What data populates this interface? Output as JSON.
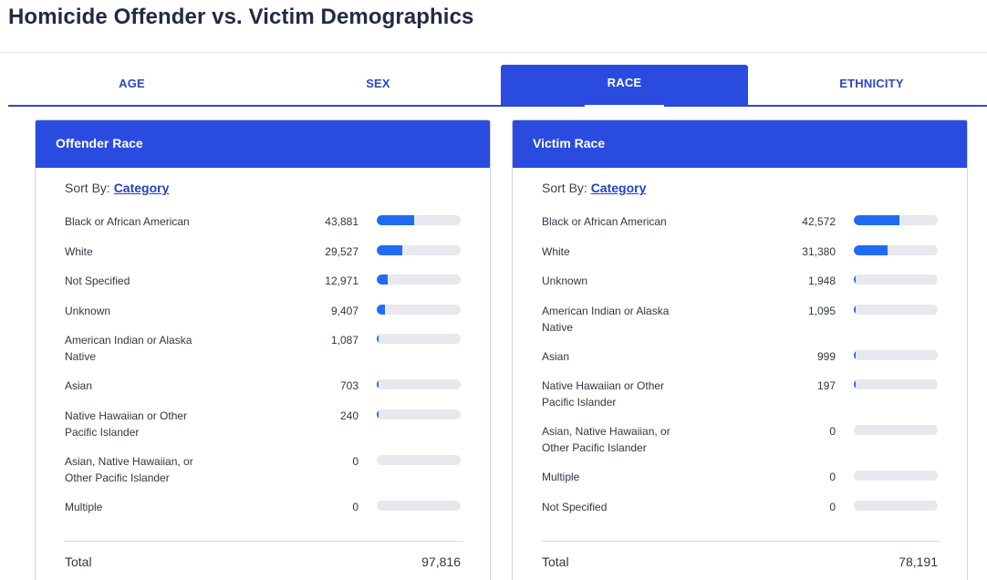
{
  "page": {
    "title": "Homicide Offender vs. Victim Demographics"
  },
  "tabs": [
    {
      "label": "AGE",
      "active": false
    },
    {
      "label": "SEX",
      "active": false
    },
    {
      "label": "RACE",
      "active": true
    },
    {
      "label": "ETHNICITY",
      "active": false
    }
  ],
  "colors": {
    "accent": "#2a4be0",
    "bar_fill": "#1f6cf2",
    "bar_track": "#e6e8ed",
    "tab_text": "#2d47c6"
  },
  "cards": [
    {
      "title": "Offender Race",
      "sort_label": "Sort By:",
      "sort_value": "Category",
      "rows": [
        {
          "label": "Black or African American",
          "value": "43,881",
          "share": 0.449
        },
        {
          "label": "White",
          "value": "29,527",
          "share": 0.302
        },
        {
          "label": "Not Specified",
          "value": "12,971",
          "share": 0.133
        },
        {
          "label": "Unknown",
          "value": "9,407",
          "share": 0.096
        },
        {
          "label": "American Indian or Alaska Native",
          "value": "1,087",
          "share": 0.011
        },
        {
          "label": "Asian",
          "value": "703",
          "share": 0.007
        },
        {
          "label": "Native Hawaiian or Other Pacific Islander",
          "value": "240",
          "share": 0.002
        },
        {
          "label": "Asian, Native Hawaiian, or Other Pacific Islander",
          "value": "0",
          "share": 0
        },
        {
          "label": "Multiple",
          "value": "0",
          "share": 0
        }
      ],
      "total_label": "Total",
      "total_value": "97,816"
    },
    {
      "title": "Victim Race",
      "sort_label": "Sort By:",
      "sort_value": "Category",
      "rows": [
        {
          "label": "Black or African American",
          "value": "42,572",
          "share": 0.544
        },
        {
          "label": "White",
          "value": "31,380",
          "share": 0.401
        },
        {
          "label": "Unknown",
          "value": "1,948",
          "share": 0.025
        },
        {
          "label": "American Indian or Alaska Native",
          "value": "1,095",
          "share": 0.014
        },
        {
          "label": "Asian",
          "value": "999",
          "share": 0.013
        },
        {
          "label": "Native Hawaiian or Other Pacific Islander",
          "value": "197",
          "share": 0.003
        },
        {
          "label": "Asian, Native Hawaiian, or Other Pacific Islander",
          "value": "0",
          "share": 0
        },
        {
          "label": "Multiple",
          "value": "0",
          "share": 0
        },
        {
          "label": "Not Specified",
          "value": "0",
          "share": 0
        }
      ],
      "total_label": "Total",
      "total_value": "78,191"
    }
  ]
}
